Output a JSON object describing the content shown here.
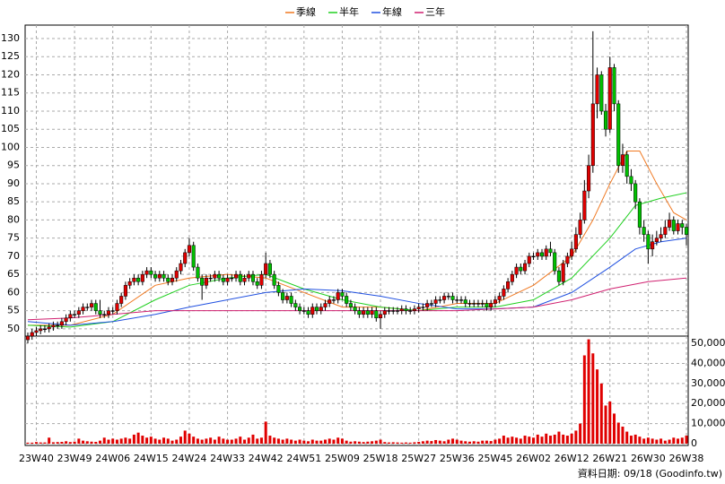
{
  "chart_data": {
    "type": "candlestick",
    "categories": [
      null,
      null,
      "23W40",
      null,
      null,
      null,
      null,
      null,
      null,
      null,
      null,
      "23W49",
      null,
      null,
      null,
      null,
      null,
      null,
      null,
      null,
      "24W06",
      null,
      null,
      null,
      null,
      null,
      null,
      null,
      null,
      "24W15",
      null,
      null,
      null,
      null,
      null,
      null,
      null,
      null,
      "24W24",
      null,
      null,
      null,
      null,
      null,
      null,
      null,
      null,
      "24W33",
      null,
      null,
      null,
      null,
      null,
      null,
      null,
      null,
      "24W42",
      null,
      null,
      null,
      null,
      null,
      null,
      null,
      null,
      "24W51",
      null,
      null,
      null,
      null,
      null,
      null,
      null,
      null,
      "25W09",
      null,
      null,
      null,
      null,
      null,
      null,
      null,
      null,
      "25W18",
      null,
      null,
      null,
      null,
      null,
      null,
      null,
      null,
      "25W27",
      null,
      null,
      null,
      null,
      null,
      null,
      null,
      null,
      "25W36",
      null,
      null,
      null,
      null,
      null,
      null,
      null,
      null,
      "25W45",
      null,
      null,
      null,
      null,
      null,
      null,
      null,
      null,
      "26W02",
      null,
      null,
      null,
      null,
      null,
      null,
      null,
      null,
      "26W12",
      null,
      null,
      null,
      null,
      null,
      null,
      null,
      null,
      "26W21",
      null,
      null,
      null,
      null,
      null,
      null,
      null,
      null,
      "26W30",
      null,
      null,
      null,
      null,
      null,
      null,
      null,
      null,
      "26W38"
    ],
    "open": [
      47,
      48,
      49,
      49.5,
      50,
      50,
      50.5,
      51,
      51,
      52,
      53,
      54,
      54,
      55,
      56,
      56,
      57,
      55,
      54,
      54,
      55,
      55,
      57,
      59,
      62,
      63,
      64,
      63,
      65,
      66,
      65,
      64,
      65,
      64,
      63,
      64,
      66,
      68,
      71,
      73,
      67,
      64,
      62,
      64,
      64,
      65,
      64,
      63,
      64,
      64,
      65,
      63,
      64,
      65,
      63,
      62,
      65,
      68,
      65,
      62,
      60,
      58,
      59,
      57,
      56,
      55,
      55,
      54,
      56,
      55,
      56,
      57,
      58,
      58,
      60,
      59,
      57,
      56,
      55,
      54,
      55,
      54,
      55,
      53,
      54,
      55,
      55,
      55,
      55,
      55.5,
      55,
      55,
      55.5,
      56,
      56,
      57,
      57,
      58,
      58,
      59,
      59,
      58,
      58,
      58,
      57,
      57,
      57,
      57,
      57,
      56,
      57,
      58,
      59,
      61,
      63,
      65,
      67,
      66,
      68,
      70,
      70,
      71,
      70,
      72,
      71,
      66,
      63,
      68,
      70,
      72,
      76,
      80,
      88,
      95,
      112,
      120,
      110,
      105,
      122,
      112,
      95,
      98,
      92,
      90,
      85,
      78,
      76,
      72,
      74,
      75,
      76,
      78,
      80,
      77,
      79,
      78
    ],
    "high": [
      49,
      50,
      50.5,
      51,
      51,
      51.5,
      52,
      52,
      53,
      54,
      55,
      55,
      56,
      57,
      57,
      58,
      58,
      58,
      55,
      56,
      56,
      58,
      60,
      63,
      64,
      65,
      65,
      66,
      67,
      67,
      66,
      66,
      66,
      65,
      65,
      67,
      69,
      72,
      75,
      74,
      68,
      65,
      65,
      65,
      66,
      66,
      65,
      65,
      65,
      66,
      66,
      65,
      66,
      66,
      64,
      66,
      71,
      69,
      66,
      63,
      61,
      60,
      60,
      58,
      57,
      56,
      56,
      57,
      57,
      57,
      58,
      59,
      59,
      61,
      61,
      60,
      58,
      57,
      56,
      56,
      56,
      56,
      56,
      55,
      56,
      56,
      56,
      56,
      56.5,
      56.5,
      56,
      56.5,
      57,
      57,
      58,
      58,
      59,
      59,
      60,
      60,
      60,
      59,
      59,
      59,
      58,
      58,
      58,
      58,
      58,
      58,
      59,
      60,
      62,
      64,
      66,
      68,
      68,
      69,
      71,
      71,
      72,
      72,
      73,
      74,
      72,
      67,
      69,
      71,
      74,
      78,
      82,
      91,
      98,
      132,
      122,
      121,
      112,
      125,
      123,
      113,
      101,
      99,
      94,
      91,
      86,
      80,
      77,
      76,
      77,
      78,
      80,
      82,
      81,
      80,
      80,
      79
    ],
    "low": [
      46,
      47,
      48,
      48.5,
      49,
      49,
      49.5,
      50,
      50,
      51,
      52,
      53,
      53,
      54,
      55,
      55,
      54,
      53,
      53,
      53,
      54,
      54,
      56,
      58,
      61,
      62,
      62,
      62,
      64,
      64,
      63,
      63,
      63,
      62,
      62,
      63,
      65,
      67,
      70,
      66,
      63,
      58,
      61,
      63,
      63,
      63,
      62,
      62,
      63,
      63,
      62,
      62,
      63,
      62,
      61,
      61,
      64,
      64,
      61,
      59,
      57,
      57,
      56,
      55,
      54,
      54,
      53,
      53,
      54,
      54,
      55,
      56,
      57,
      57,
      58,
      56,
      55,
      54,
      53,
      53,
      53,
      53,
      52,
      50,
      53,
      54,
      54,
      54,
      54,
      54,
      54,
      54,
      54.5,
      55,
      55,
      56,
      56,
      57,
      57,
      58,
      57,
      57,
      57,
      56,
      56,
      56,
      56,
      56,
      55,
      55,
      56,
      57,
      58,
      60,
      62,
      64,
      65,
      65,
      67,
      69,
      69,
      69,
      69,
      70,
      65,
      62,
      62,
      67,
      69,
      71,
      75,
      79,
      86,
      93,
      108,
      109,
      103,
      104,
      110,
      93,
      93,
      90,
      88,
      83,
      76,
      74,
      68,
      70,
      73,
      74,
      75,
      77,
      76,
      76,
      76,
      73
    ],
    "close": [
      48,
      49,
      49.5,
      50,
      50,
      50.5,
      51,
      51,
      52,
      53,
      54,
      54,
      55,
      56,
      56,
      57,
      55,
      54,
      54,
      55,
      55,
      57,
      59,
      62,
      63,
      64,
      63,
      65,
      66,
      65,
      64,
      65,
      64,
      63,
      64,
      66,
      68,
      71,
      73,
      67,
      64,
      62,
      64,
      64,
      65,
      64,
      63,
      64,
      64,
      65,
      63,
      64,
      65,
      63,
      62,
      65,
      68,
      65,
      62,
      60,
      58,
      59,
      57,
      56,
      55,
      55,
      54,
      56,
      55,
      56,
      57,
      58,
      58,
      60,
      59,
      57,
      56,
      55,
      54,
      55,
      54,
      55,
      53,
      54,
      55,
      55,
      55,
      55,
      55.5,
      55,
      55,
      55.5,
      56,
      56,
      57,
      57,
      58,
      58,
      59,
      59,
      58,
      58,
      58,
      57,
      57,
      57,
      57,
      57,
      56,
      57,
      58,
      59,
      61,
      63,
      65,
      67,
      66,
      68,
      70,
      70,
      71,
      70,
      72,
      71,
      66,
      63,
      68,
      70,
      72,
      76,
      80,
      88,
      95,
      112,
      120,
      110,
      105,
      122,
      112,
      95,
      98,
      92,
      90,
      85,
      78,
      76,
      72,
      74,
      75,
      76,
      78,
      80,
      77,
      79,
      78,
      76
    ],
    "volume": [
      500,
      500,
      800,
      600,
      600,
      3000,
      700,
      800,
      900,
      1200,
      800,
      1000,
      2500,
      1500,
      1200,
      1000,
      900,
      1500,
      3000,
      2000,
      2500,
      2000,
      2500,
      3000,
      2500,
      4500,
      5500,
      4000,
      3000,
      3500,
      2500,
      2000,
      3000,
      2500,
      1500,
      2000,
      3500,
      6500,
      5000,
      3500,
      2500,
      2000,
      2500,
      3000,
      2000,
      3500,
      2500,
      2000,
      2000,
      2500,
      3500,
      2000,
      3000,
      4500,
      2500,
      3000,
      11000,
      4000,
      3000,
      2500,
      2000,
      2500,
      2000,
      1500,
      2000,
      1500,
      1200,
      2000,
      1500,
      1500,
      2000,
      2500,
      2000,
      3000,
      2500,
      1500,
      1000,
      1200,
      1000,
      800,
      1000,
      1200,
      1500,
      2000,
      800,
      600,
      700,
      600,
      500,
      600,
      500,
      700,
      900,
      1200,
      1500,
      1300,
      1800,
      1500,
      1200,
      2000,
      2500,
      2000,
      1500,
      1200,
      1000,
      1200,
      1000,
      1500,
      1500,
      1300,
      2000,
      2500,
      4000,
      3000,
      3500,
      3000,
      2500,
      4000,
      3500,
      3000,
      4500,
      3500,
      5000,
      4000,
      4500,
      6000,
      4500,
      4000,
      5000,
      6500,
      10000,
      44000,
      52000,
      45000,
      37000,
      30000,
      19000,
      21000,
      15000,
      10500,
      8500,
      6000,
      4000,
      4500,
      3500,
      2500,
      3000,
      2500,
      2000,
      2500,
      1500,
      2000,
      3000,
      2500,
      3000,
      4000
    ],
    "up_color": "#e00000",
    "down_color": "#00c000",
    "volume_color": "#e00000",
    "ylim": [
      48,
      133.7
    ],
    "yticks": [
      50,
      55,
      60,
      65,
      70,
      75,
      80,
      85,
      90,
      95,
      100,
      105,
      110,
      115,
      120,
      125,
      130
    ],
    "volume_ylim": [
      0,
      53600
    ],
    "volume_yticks": [
      0,
      {
        "value": 10000,
        "label": "10,000"
      },
      {
        "value": 20000,
        "label": "20,000"
      },
      {
        "value": 30000,
        "label": "30,000"
      },
      {
        "value": 40000,
        "label": "40,000"
      },
      {
        "value": 50000,
        "label": "50,000"
      }
    ],
    "grid": true,
    "ma_series": [
      {
        "name": "季線",
        "color": "#f07820",
        "x": [
          0,
          10,
          20,
          30,
          38,
          47,
          56,
          65,
          74,
          83,
          92,
          101,
          110,
          119,
          128,
          133,
          137,
          141,
          144,
          148,
          152,
          155
        ],
        "values": [
          51,
          51,
          54,
          62,
          64,
          65,
          64,
          60,
          56,
          56,
          55,
          57,
          57,
          62,
          70,
          80,
          90,
          99,
          99,
          90,
          82,
          80
        ]
      },
      {
        "name": "半年",
        "color": "#20d020",
        "x": [
          0,
          10,
          20,
          30,
          38,
          47,
          56,
          65,
          74,
          83,
          92,
          101,
          110,
          119,
          128,
          137,
          143,
          149,
          155
        ],
        "values": [
          51,
          50.5,
          52,
          58,
          62,
          64,
          65,
          61,
          58,
          56,
          55,
          56,
          56,
          58,
          64,
          75,
          84,
          86,
          87.5
        ]
      },
      {
        "name": "年線",
        "color": "#2050e0",
        "x": [
          0,
          10,
          20,
          30,
          38,
          47,
          56,
          65,
          74,
          83,
          92,
          101,
          110,
          119,
          128,
          137,
          143,
          149,
          155
        ],
        "values": [
          52,
          51,
          52,
          54,
          56,
          58,
          60,
          61,
          60.5,
          59,
          57,
          55.5,
          55.5,
          56,
          60,
          67,
          72,
          74,
          75
        ]
      },
      {
        "name": "三年",
        "color": "#d02070",
        "x": [
          0,
          10,
          20,
          30,
          47,
          74,
          101,
          110,
          119,
          128,
          137,
          146,
          155
        ],
        "values": [
          52.5,
          53,
          54,
          55,
          55,
          55,
          55,
          55.5,
          56,
          58,
          61,
          63,
          64
        ]
      }
    ]
  },
  "footer": "資料日期: 09/18 (Goodinfo.tw)"
}
